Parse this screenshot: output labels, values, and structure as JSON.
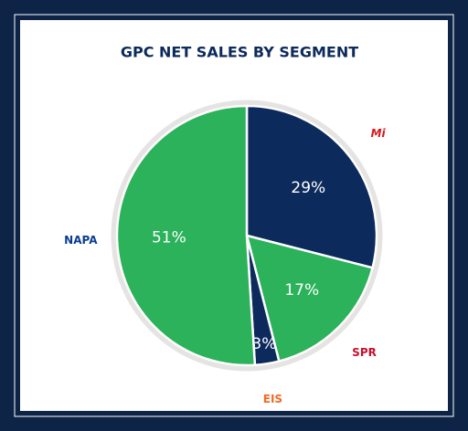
{
  "chart_data": {
    "type": "pie",
    "title": "GPC NET SALES BY SEGMENT",
    "categories": [
      "Mi",
      "SPR",
      "EIS",
      "NAPA"
    ],
    "values": [
      29,
      17,
      3,
      51
    ],
    "value_labels": [
      "29%",
      "17%",
      "3%",
      "51%"
    ],
    "colors": [
      "#0c2a5c",
      "#2bb25b",
      "#0c2a5c",
      "#2bb25b"
    ]
  }
}
